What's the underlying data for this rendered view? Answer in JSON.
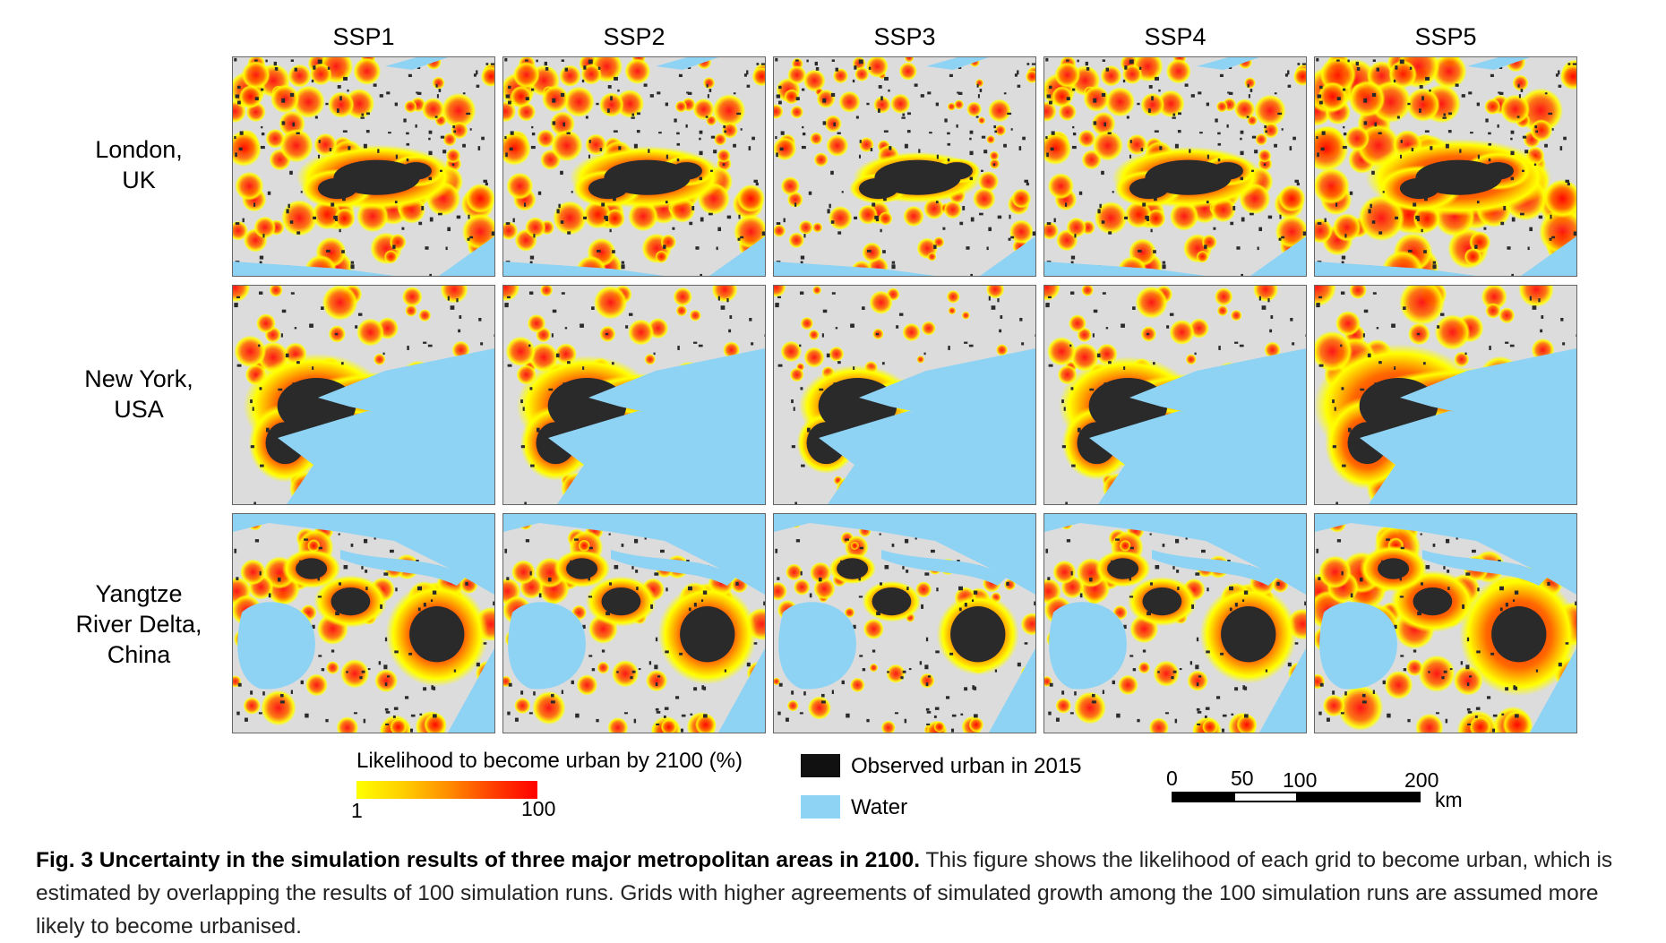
{
  "columns": [
    "SSP1",
    "SSP2",
    "SSP3",
    "SSP4",
    "SSP5"
  ],
  "rows": [
    {
      "line1": "London,",
      "line2": "UK",
      "line3": ""
    },
    {
      "line1": "New York,",
      "line2": "USA",
      "line3": ""
    },
    {
      "line1": "Yangtze",
      "line2": "River Delta,",
      "line3": "China"
    }
  ],
  "legend": {
    "gradient_title": "Likelihood to become urban by 2100 (%)",
    "gradient_min": "1",
    "gradient_max": "100",
    "observed_label": "Observed urban in 2015",
    "water_label": "Water"
  },
  "scale": {
    "ticks": [
      "0",
      "50",
      "100",
      "200"
    ],
    "unit": "km"
  },
  "caption": {
    "bold": "Fig. 3 Uncertainty in the simulation results of three major metropolitan areas in 2100.",
    "text": " This figure shows the likelihood of each grid to become urban, which is estimated by overlapping the results of 100 simulation runs. Grids with higher agreements of simulated growth among the 100 simulation runs are assumed more likely to become urbanised."
  },
  "colors": {
    "land": "#dcdcdc",
    "water": "#8fd3f4",
    "observed_urban": "#2a2a2a",
    "likelihood_low": "#ffff00",
    "likelihood_high": "#ff0000"
  }
}
